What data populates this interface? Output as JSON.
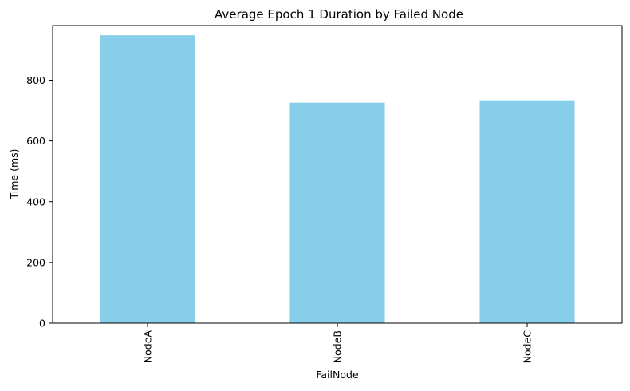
{
  "chart_data": {
    "type": "bar",
    "title": "Average Epoch 1 Duration by Failed Node",
    "xlabel": "FailNode",
    "ylabel": "Time (ms)",
    "categories": [
      "NodeA",
      "NodeB",
      "NodeC"
    ],
    "values": [
      948,
      726,
      734
    ],
    "ylim": [
      0,
      980
    ],
    "yticks": [
      0,
      200,
      400,
      600,
      800
    ],
    "bar_color": "#87CEEB",
    "grid": false,
    "legend": "none",
    "xtick_rotation": "vertical"
  }
}
